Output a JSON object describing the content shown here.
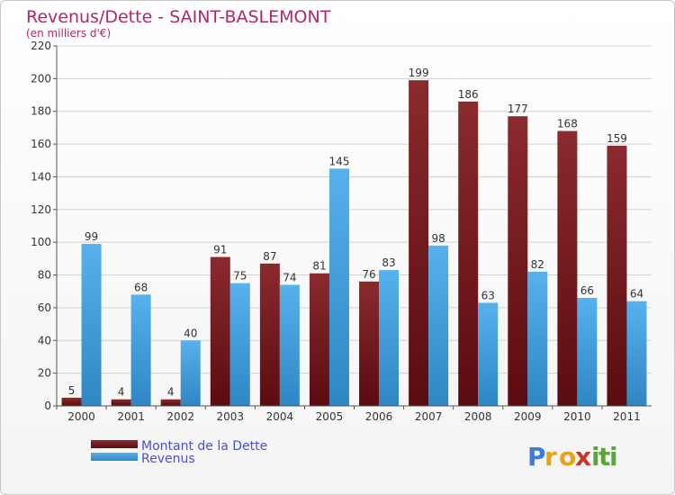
{
  "chart_data": {
    "type": "bar",
    "title": "Revenus/Dette - SAINT-BASLEMONT",
    "subtitle": "(en milliers d'€)",
    "xlabel": "",
    "ylabel": "",
    "ylim": [
      0,
      220
    ],
    "yticks": [
      "0",
      "20",
      "40",
      "60",
      "80",
      "100",
      "120",
      "140",
      "160",
      "180",
      "200",
      "220"
    ],
    "grid": true,
    "categories": [
      "2000",
      "2001",
      "2002",
      "2003",
      "2004",
      "2005",
      "2006",
      "2007",
      "2008",
      "2009",
      "2010",
      "2011"
    ],
    "series": [
      {
        "name": "Montant de la Dette",
        "color": "#7a1e22",
        "values": [
          5,
          4,
          4,
          91,
          87,
          81,
          76,
          199,
          186,
          177,
          168,
          159
        ]
      },
      {
        "name": "Revenus",
        "color": "#4aa3df",
        "values": [
          99,
          68,
          40,
          75,
          74,
          145,
          83,
          98,
          63,
          82,
          66,
          64
        ]
      }
    ],
    "legend_position": "bottom-left"
  },
  "logo": {
    "letters": [
      "P",
      "r",
      "o",
      "x",
      "i",
      "t",
      "i"
    ],
    "colors": [
      "#3b7dd8",
      "#e8a21a",
      "#e8a21a",
      "#c0392b",
      "#5aa63a",
      "#5aa63a",
      "#5aa63a"
    ]
  }
}
